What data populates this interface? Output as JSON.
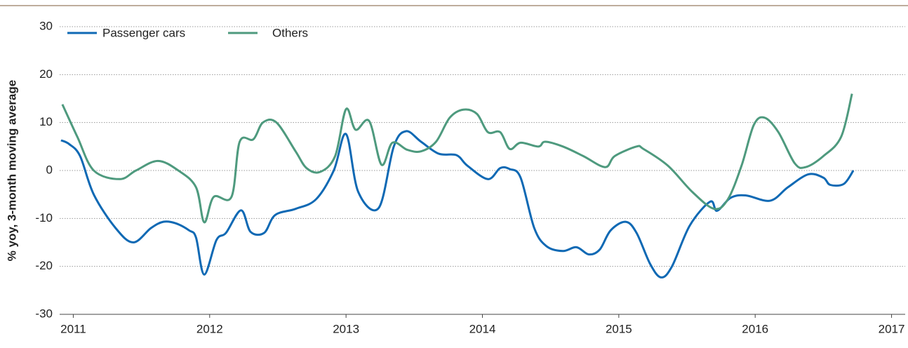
{
  "chart_data": {
    "type": "line",
    "y_label": "% yoy, 3-month moving average",
    "xlim": [
      2010.9,
      2017.1
    ],
    "xticks": [
      2011,
      2012,
      2013,
      2014,
      2015,
      2016,
      2017
    ],
    "ylim": [
      -30,
      30
    ],
    "yticks": [
      -30,
      -20,
      -10,
      0,
      10,
      20,
      30
    ],
    "grid": true,
    "legend": "top-left",
    "series": [
      {
        "name": "Passenger cars",
        "color": "#0f69b4",
        "x": [
          2010.91,
          2010.97,
          2011.05,
          2011.15,
          2011.31,
          2011.44,
          2011.57,
          2011.66,
          2011.75,
          2011.85,
          2011.9,
          2011.96,
          2012.05,
          2012.12,
          2012.23,
          2012.3,
          2012.4,
          2012.48,
          2012.63,
          2012.78,
          2012.91,
          2013.0,
          2013.09,
          2013.24,
          2013.35,
          2013.44,
          2013.55,
          2013.68,
          2013.81,
          2013.89,
          2014.04,
          2014.13,
          2014.2,
          2014.28,
          2014.38,
          2014.47,
          2014.59,
          2014.69,
          2014.78,
          2014.86,
          2014.94,
          2015.05,
          2015.13,
          2015.23,
          2015.31,
          2015.39,
          2015.52,
          2015.67,
          2015.72,
          2015.82,
          2015.93,
          2016.11,
          2016.24,
          2016.39,
          2016.5,
          2016.55,
          2016.65,
          2016.72
        ],
        "values": [
          6.3,
          5.5,
          3,
          -5,
          -12,
          -15,
          -12,
          -10.7,
          -11,
          -12.5,
          -14,
          -21.7,
          -14.5,
          -13,
          -8.3,
          -12.8,
          -13,
          -9.3,
          -8,
          -6,
          0,
          7.6,
          -4.5,
          -7.8,
          5,
          8.2,
          6,
          3.5,
          3.2,
          1,
          -1.8,
          0.5,
          0.3,
          -1.5,
          -12,
          -15.8,
          -16.8,
          -16,
          -17.5,
          -16.5,
          -12.5,
          -10.7,
          -13,
          -19.5,
          -22.3,
          -20,
          -11.5,
          -6.5,
          -8.4,
          -5.7,
          -5.2,
          -6.3,
          -3.5,
          -0.8,
          -1.5,
          -3,
          -2.8,
          0
        ]
      },
      {
        "name": "Others",
        "color": "#4e9a7e",
        "x": [
          2010.92,
          2011.03,
          2011.15,
          2011.34,
          2011.46,
          2011.62,
          2011.77,
          2011.9,
          2011.96,
          2012.03,
          2012.16,
          2012.22,
          2012.32,
          2012.39,
          2012.49,
          2012.63,
          2012.71,
          2012.81,
          2012.92,
          2013.0,
          2013.07,
          2013.17,
          2013.26,
          2013.34,
          2013.45,
          2013.55,
          2013.66,
          2013.76,
          2013.86,
          2013.96,
          2014.04,
          2014.13,
          2014.2,
          2014.28,
          2014.41,
          2014.46,
          2014.59,
          2014.74,
          2014.9,
          2014.97,
          2015.13,
          2015.18,
          2015.36,
          2015.54,
          2015.7,
          2015.8,
          2015.9,
          2015.99,
          2016.07,
          2016.17,
          2016.29,
          2016.37,
          2016.5,
          2016.63,
          2016.71
        ],
        "values": [
          13.8,
          7,
          0,
          -1.8,
          0,
          2,
          0,
          -3.5,
          -10.8,
          -5.5,
          -5.5,
          6,
          6.5,
          10,
          10,
          4,
          0.5,
          -0.3,
          3,
          12.8,
          8.5,
          10.3,
          1.2,
          5.8,
          4.3,
          4,
          6,
          11,
          12.7,
          11.8,
          8,
          8,
          4.5,
          5.8,
          5,
          6,
          5,
          3,
          0.7,
          3,
          5,
          4.5,
          1,
          -4.5,
          -8,
          -6,
          1,
          9.5,
          11,
          8,
          1.5,
          0.7,
          3,
          7,
          16
        ]
      }
    ]
  }
}
